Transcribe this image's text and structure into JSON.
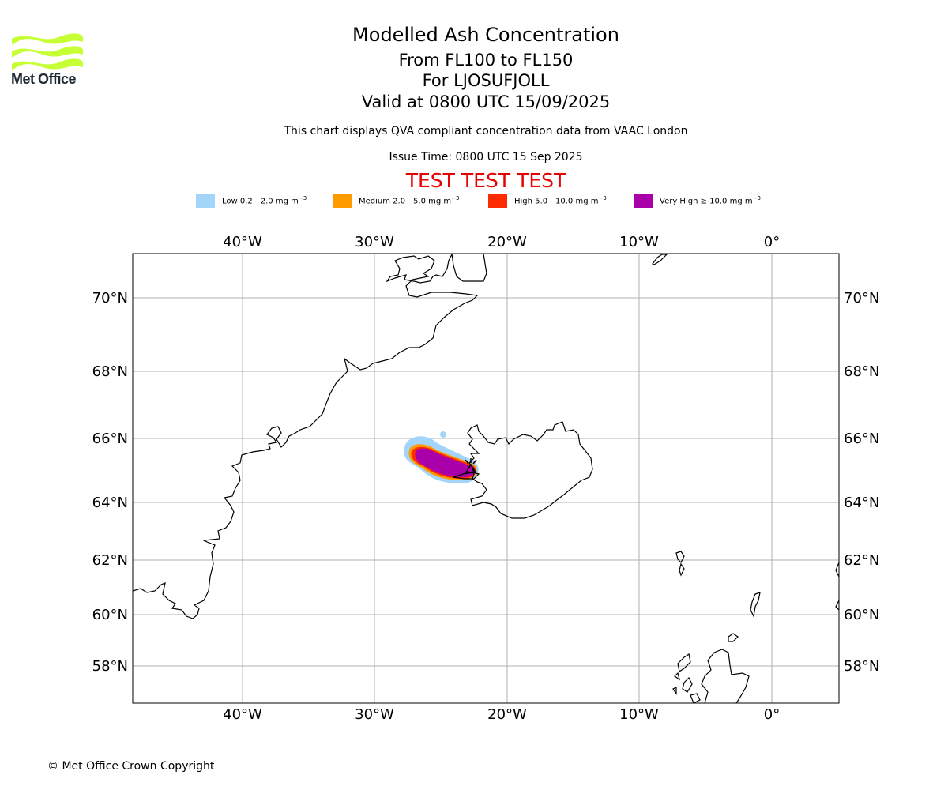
{
  "header": {
    "title": "Modelled Ash Concentration",
    "levels": "From FL100 to FL150",
    "volcano": "For LJOSUFJOLL",
    "valid": "Valid at 0800 UTC 15/09/2025",
    "disclaimer": "This chart displays QVA compliant concentration data from VAAC London",
    "issue_time": "Issue Time: 0800 UTC 15 Sep 2025",
    "test_banner": "TEST TEST TEST"
  },
  "logo": {
    "text": "Met Office",
    "icon": "met-office-wave-icon",
    "color": "#c6ff33"
  },
  "legend": [
    {
      "label": "Low 0.2 - 2.0 mg m",
      "exp": "−3",
      "color": "#a3d5fb"
    },
    {
      "label": "Medium 2.0 - 5.0 mg m",
      "exp": "−3",
      "color": "#ff9a00"
    },
    {
      "label": "High 5.0 - 10.0 mg m",
      "exp": "−3",
      "color": "#ff2b00"
    },
    {
      "label": "Very High  ≥  10.0 mg m",
      "exp": "−3",
      "color": "#aa00aa"
    }
  ],
  "map": {
    "lon_ticks": [
      "40°W",
      "30°W",
      "20°W",
      "10°W",
      "0°"
    ],
    "lat_ticks": [
      "70°N",
      "68°N",
      "66°N",
      "64°N",
      "62°N",
      "60°N",
      "58°N"
    ],
    "volcano_marker": "volcano-symbol-icon"
  },
  "footer": {
    "copyright": "© Met Office Crown Copyright"
  }
}
